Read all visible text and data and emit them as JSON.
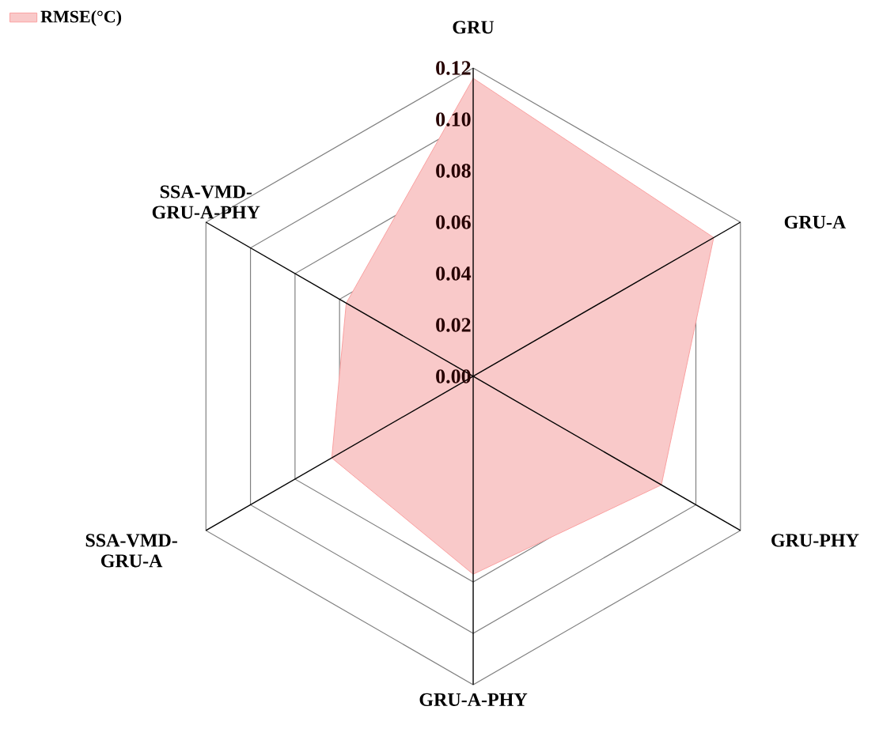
{
  "chart_data": {
    "type": "radar",
    "categories": [
      "GRU",
      "GRU-A",
      "GRU-PHY",
      "GRU-A-PHY",
      "SSA-VMD-GRU-A",
      "SSA-VMD-GRU-A-PHY"
    ],
    "series": [
      {
        "name": "RMSE(°C)",
        "color": "#f9c9c9",
        "values": [
          0.116,
          0.108,
          0.0845,
          0.077,
          0.0635,
          0.057
        ]
      }
    ],
    "ylim": [
      0,
      0.12
    ],
    "yticks": [
      {
        "value": 0,
        "label": "0.00"
      },
      {
        "value": 0.02,
        "label": "0.02"
      },
      {
        "value": 0.04,
        "label": "0.04"
      },
      {
        "value": 0.06,
        "label": "0.06"
      },
      {
        "value": 0.08,
        "label": "0.08"
      },
      {
        "value": 0.1,
        "label": "0.10"
      },
      {
        "value": 0.12,
        "label": "0.12"
      }
    ],
    "grid": true,
    "legend": "top left",
    "marker": "none"
  }
}
